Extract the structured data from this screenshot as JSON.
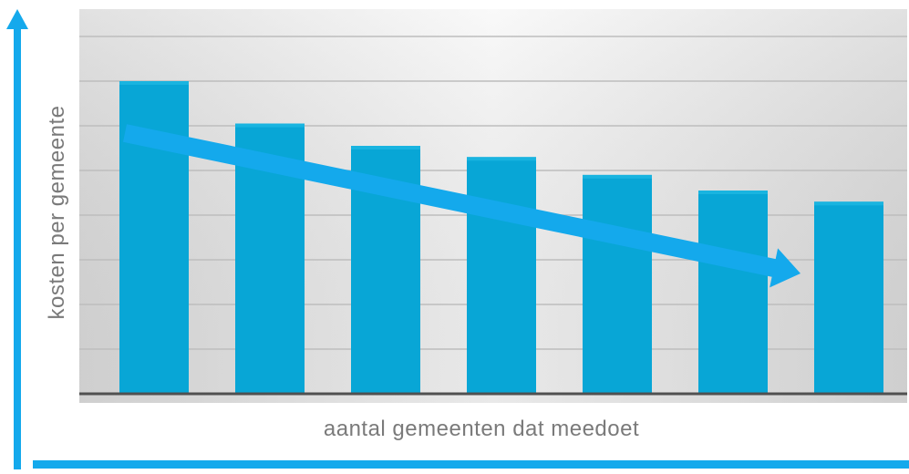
{
  "chart_data": {
    "type": "bar",
    "title": "",
    "xlabel": "aantal gemeenten dat meedoet",
    "ylabel": "kosten per gemeente",
    "categories": [
      "",
      "",
      "",
      "",
      "",
      "",
      ""
    ],
    "values": [
      7.0,
      6.05,
      5.55,
      5.3,
      4.9,
      4.55,
      4.3
    ],
    "ylim": [
      0,
      8
    ],
    "grid": true,
    "legend": "none",
    "trend_arrow": "downward",
    "colors": {
      "bar": "#08a6d6",
      "bar_highlight": "#19b4e0",
      "arrow": "#14a9ec",
      "axis_arrow": "#14a9ec",
      "plot_bg_center": "#f7f7f7",
      "plot_bg_edge": "#d8d8d8",
      "gridline": "#bdbdbd",
      "baseline": "#505050",
      "label": "#7a7a7a"
    }
  }
}
